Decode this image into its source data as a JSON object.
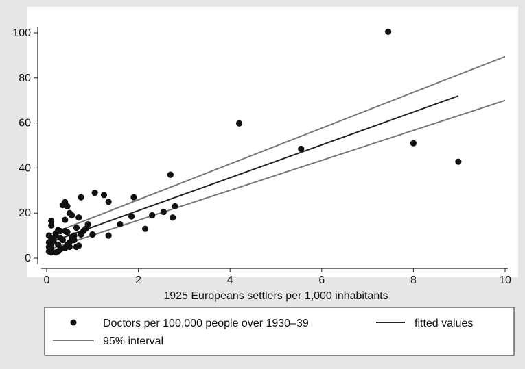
{
  "chart_data": {
    "type": "scatter",
    "xlabel": "1925 Europeans settlers per 1,000 inhabitants",
    "ylabel": "",
    "xlim": [
      0,
      10
    ],
    "ylim": [
      0,
      100
    ],
    "xticks": [
      0,
      2,
      4,
      6,
      8,
      10
    ],
    "yticks": [
      0,
      20,
      40,
      60,
      80,
      100
    ],
    "grid": false,
    "legend_position": "bottom",
    "series": [
      {
        "name": "Doctors per 100,000 people over 1930–39",
        "kind": "scatter",
        "color": "#111111",
        "points": [
          [
            7.45,
            100.5
          ],
          [
            4.2,
            59.8
          ],
          [
            5.55,
            48.5
          ],
          [
            8.0,
            51.0
          ],
          [
            8.98,
            42.8
          ],
          [
            2.7,
            37.0
          ],
          [
            1.05,
            29.0
          ],
          [
            1.25,
            28.0
          ],
          [
            1.35,
            25.0
          ],
          [
            1.9,
            27.0
          ],
          [
            0.75,
            27.0
          ],
          [
            0.35,
            23.5
          ],
          [
            0.4,
            24.8
          ],
          [
            0.45,
            23.0
          ],
          [
            0.5,
            20.0
          ],
          [
            0.55,
            19.0
          ],
          [
            0.4,
            17.0
          ],
          [
            0.7,
            18.0
          ],
          [
            0.1,
            16.5
          ],
          [
            0.1,
            14.5
          ],
          [
            0.9,
            15.0
          ],
          [
            1.6,
            15.0
          ],
          [
            0.8,
            12.0
          ],
          [
            0.75,
            10.5
          ],
          [
            1.0,
            10.5
          ],
          [
            1.35,
            10.0
          ],
          [
            1.85,
            18.5
          ],
          [
            2.15,
            13.0
          ],
          [
            2.3,
            19.0
          ],
          [
            2.55,
            20.5
          ],
          [
            2.8,
            23.0
          ],
          [
            2.75,
            18.0
          ],
          [
            0.65,
            13.5
          ],
          [
            0.3,
            12.0
          ],
          [
            0.2,
            11.0
          ],
          [
            0.05,
            10.0
          ],
          [
            0.1,
            9.0
          ],
          [
            0.15,
            8.0
          ],
          [
            0.05,
            7.0
          ],
          [
            0.1,
            6.0
          ],
          [
            0.05,
            5.0
          ],
          [
            0.1,
            4.0
          ],
          [
            0.05,
            3.0
          ],
          [
            0.1,
            2.5
          ],
          [
            0.2,
            2.5
          ],
          [
            0.25,
            3.0
          ],
          [
            0.3,
            4.0
          ],
          [
            0.4,
            4.5
          ],
          [
            0.45,
            6.0
          ],
          [
            0.5,
            5.0
          ],
          [
            0.35,
            8.0
          ],
          [
            0.55,
            9.0
          ],
          [
            0.6,
            10.0
          ],
          [
            0.45,
            11.5
          ],
          [
            0.25,
            12.5
          ],
          [
            0.2,
            10.0
          ],
          [
            0.15,
            7.5
          ],
          [
            0.65,
            5.0
          ],
          [
            0.7,
            5.5
          ],
          [
            0.85,
            13.0
          ],
          [
            0.3,
            9.0
          ],
          [
            0.4,
            12.0
          ],
          [
            0.5,
            7.0
          ],
          [
            0.6,
            8.0
          ],
          [
            0.25,
            6.0
          ]
        ]
      },
      {
        "name": "fitted values",
        "kind": "line",
        "color": "#222222",
        "points": [
          [
            0,
            6.5
          ],
          [
            8.98,
            72.0
          ]
        ]
      },
      {
        "name": "95% interval",
        "kind": "band",
        "color": "#777777",
        "upper": [
          [
            0,
            10.0
          ],
          [
            10.0,
            89.5
          ]
        ],
        "lower": [
          [
            0,
            3.5
          ],
          [
            10.0,
            70.0
          ]
        ]
      }
    ]
  }
}
